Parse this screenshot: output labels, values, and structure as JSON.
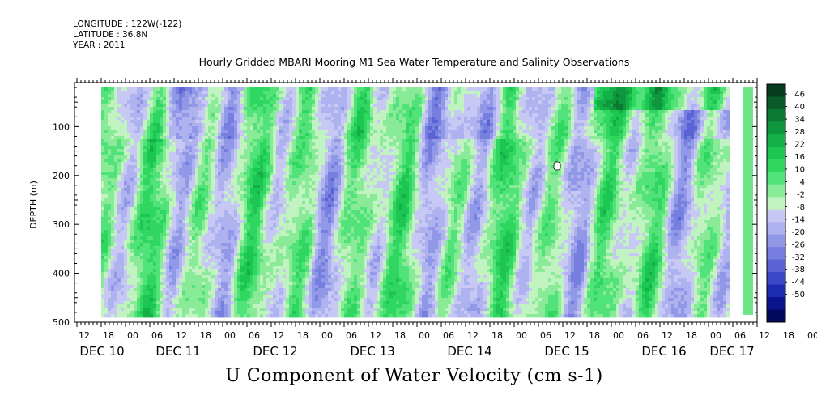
{
  "header": {
    "longitude": "LONGITUDE : 122W(-122)",
    "latitude": "LATITUDE : 36.8N",
    "year": "YEAR : 2011"
  },
  "chart_data": {
    "type": "heatmap",
    "title": "Hourly Gridded MBARI Mooring M1 Sea Water Temperature and Salinity Observations",
    "xlabel": "U Component of Water Velocity (cm s-1)",
    "ylabel": "DEPTH (m)",
    "ylim": [
      500,
      10
    ],
    "y_reversed": true,
    "yticks": [
      100,
      200,
      300,
      400,
      500
    ],
    "x_hour_ticks": [
      "12",
      "18",
      "00",
      "06",
      "12",
      "18",
      "00",
      "06",
      "12",
      "18",
      "00",
      "06",
      "12",
      "18",
      "00",
      "06",
      "12",
      "18",
      "00",
      "06",
      "12",
      "18",
      "00",
      "06",
      "12",
      "18",
      "00",
      "06",
      "12",
      "18",
      "00",
      "06"
    ],
    "x_day_labels": [
      "DEC 10",
      "DEC 11",
      "DEC 12",
      "DEC 13",
      "DEC 14",
      "DEC 15",
      "DEC 16",
      "DEC 17"
    ],
    "data_range_days": [
      0.75,
      7.2
    ],
    "data_depth_range": [
      20,
      485
    ],
    "colorbar": {
      "labels": [
        "46",
        "40",
        "34",
        "28",
        "22",
        "16",
        "10",
        "4",
        "-2",
        "-8",
        "-14",
        "-20",
        "-26",
        "-32",
        "-38",
        "-44",
        "-50"
      ],
      "colors": [
        "#063d1f",
        "#0a5a2a",
        "#0c7a34",
        "#0f973e",
        "#13b048",
        "#1dc652",
        "#2fd760",
        "#52e27a",
        "#89eb98",
        "#c1f3c0",
        "#c8c8f4",
        "#aeb2ee",
        "#9298e8",
        "#767ee0",
        "#5a62d6",
        "#3a48c6",
        "#1d2cb0",
        "#0a148c",
        "#020a5e"
      ]
    },
    "colormap_center": 0
  }
}
